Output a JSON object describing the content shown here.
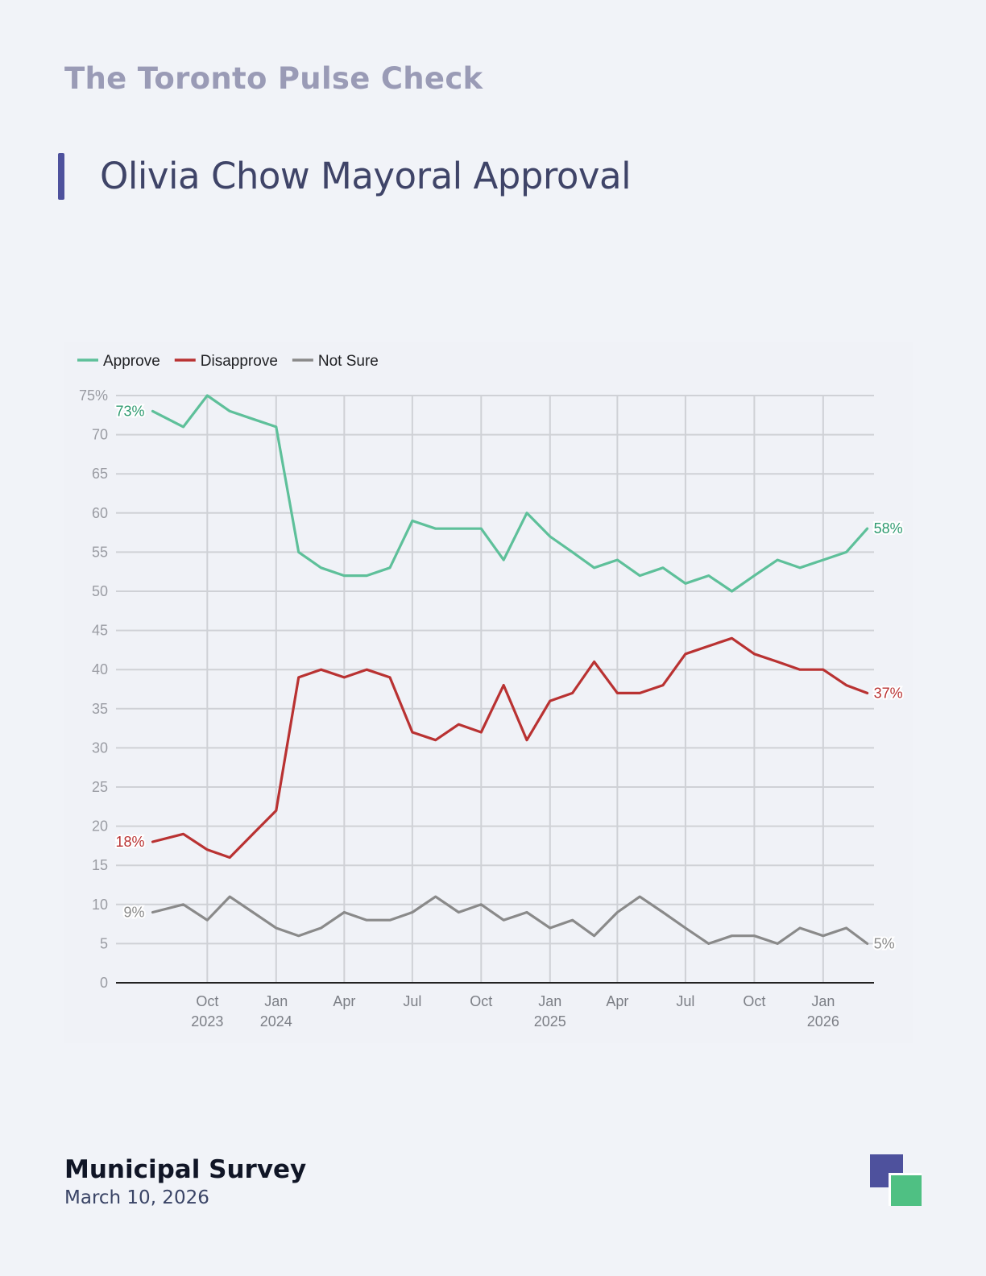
{
  "header": {
    "brand": "The Toronto Pulse Check",
    "title": "Olivia Chow Mayoral Approval"
  },
  "footer": {
    "source": "Municipal Survey",
    "date": "March 10, 2026"
  },
  "colors": {
    "accent": "#4e519d",
    "approve": "#5ec09a",
    "disapprove": "#b93232",
    "not_sure": "#8a8a8a",
    "logo_purple": "#4e519d",
    "logo_green": "#4fc083"
  },
  "icons": {
    "logo": "brand-logo-icon"
  },
  "chart_data": {
    "type": "line",
    "title": "",
    "xlabel": "",
    "ylabel": "",
    "ylim": [
      0,
      75
    ],
    "yticks": [
      0,
      5,
      10,
      15,
      20,
      25,
      30,
      35,
      40,
      45,
      50,
      55,
      60,
      65,
      70,
      75
    ],
    "ytick_labels": [
      "0",
      "5",
      "10",
      "15",
      "20",
      "25",
      "30",
      "35",
      "40",
      "45",
      "50",
      "55",
      "60",
      "65",
      "70",
      "75%"
    ],
    "grid": true,
    "legend": "top-left",
    "xlim": [
      "2023-06-01",
      "2026-03-10"
    ],
    "xticks": [
      {
        "date": "2023-10-01",
        "label": [
          "Oct",
          "2023"
        ]
      },
      {
        "date": "2024-01-01",
        "label": [
          "Jan",
          "2024"
        ]
      },
      {
        "date": "2024-04-01",
        "label": [
          "Apr"
        ]
      },
      {
        "date": "2024-07-01",
        "label": [
          "Jul"
        ]
      },
      {
        "date": "2024-10-01",
        "label": [
          "Oct"
        ]
      },
      {
        "date": "2025-01-01",
        "label": [
          "Jan",
          "2025"
        ]
      },
      {
        "date": "2025-04-01",
        "label": [
          "Apr"
        ]
      },
      {
        "date": "2025-07-01",
        "label": [
          "Jul"
        ]
      },
      {
        "date": "2025-10-01",
        "label": [
          "Oct"
        ]
      },
      {
        "date": "2026-01-01",
        "label": [
          "Jan",
          "2026"
        ]
      }
    ],
    "x": [
      "2023-07-20",
      "2023-08-30",
      "2023-10-01",
      "2023-10-31",
      "2023-12-01",
      "2024-01-01",
      "2024-01-31",
      "2024-03-01",
      "2024-04-01",
      "2024-05-01",
      "2024-06-01",
      "2024-07-01",
      "2024-08-01",
      "2024-09-01",
      "2024-10-01",
      "2024-10-31",
      "2024-12-01",
      "2025-01-01",
      "2025-01-31",
      "2025-03-01",
      "2025-04-01",
      "2025-05-01",
      "2025-06-01",
      "2025-07-01",
      "2025-08-01",
      "2025-09-01",
      "2025-10-01",
      "2025-11-01",
      "2025-12-01",
      "2026-01-01",
      "2026-02-01",
      "2026-03-01"
    ],
    "series": [
      {
        "name": "Approve",
        "color": "#5ec09a",
        "label_color": "#2e9a70",
        "start_label": "73%",
        "end_label": "58%",
        "values": [
          73,
          71,
          75,
          73,
          72,
          71,
          55,
          53,
          52,
          52,
          53,
          59,
          58,
          58,
          58,
          54,
          60,
          57,
          55,
          53,
          54,
          52,
          53,
          51,
          52,
          50,
          52,
          54,
          53,
          54,
          55,
          58
        ]
      },
      {
        "name": "Disapprove",
        "color": "#b93232",
        "label_color": "#b93232",
        "start_label": "18%",
        "end_label": "37%",
        "values": [
          18,
          19,
          17,
          16,
          19,
          22,
          39,
          40,
          39,
          40,
          39,
          32,
          31,
          33,
          32,
          38,
          31,
          36,
          37,
          41,
          37,
          37,
          38,
          42,
          43,
          44,
          42,
          41,
          40,
          40,
          38,
          37
        ]
      },
      {
        "name": "Not Sure",
        "color": "#8a8a8a",
        "label_color": "#8a8a8a",
        "start_label": "9%",
        "end_label": "5%",
        "values": [
          9,
          10,
          8,
          11,
          9,
          7,
          6,
          7,
          9,
          8,
          8,
          9,
          11,
          9,
          10,
          8,
          9,
          7,
          8,
          6,
          9,
          11,
          9,
          7,
          5,
          6,
          6,
          5,
          7,
          6,
          7,
          5
        ]
      }
    ]
  }
}
